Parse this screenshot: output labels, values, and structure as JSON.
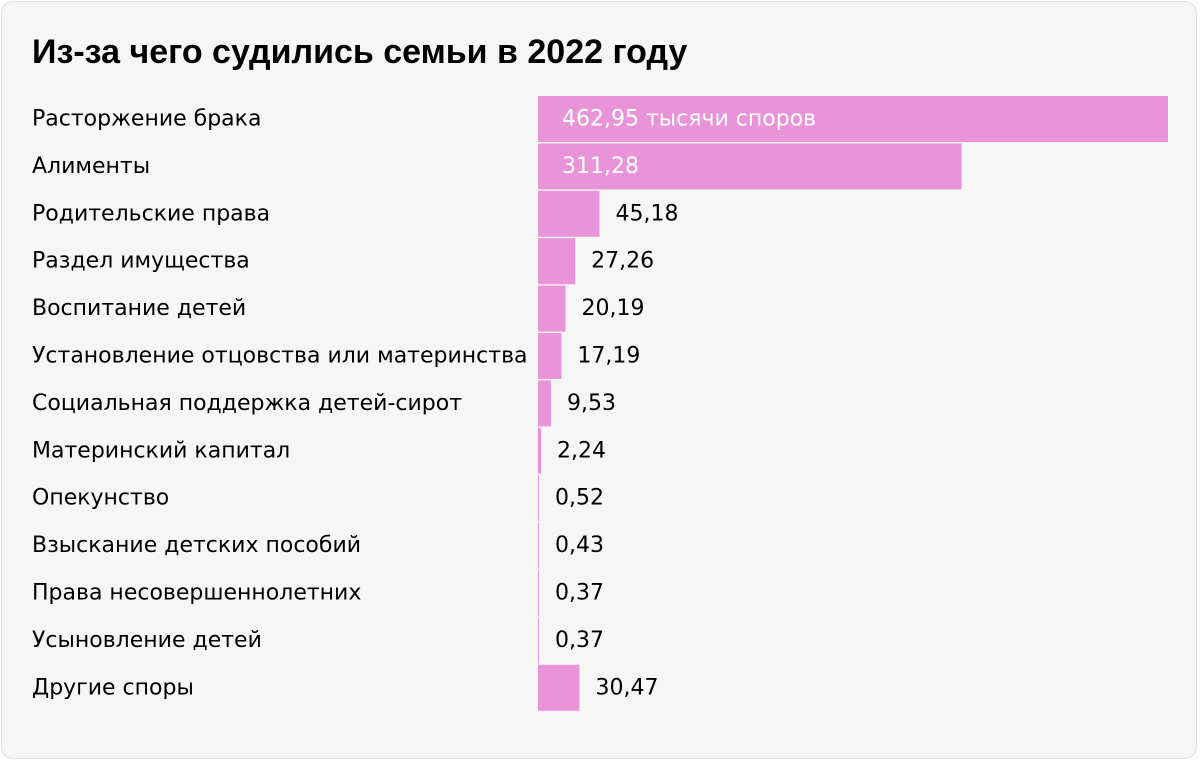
{
  "title": "Из-за чего судились семьи в 2022 году",
  "colors": {
    "bar": "#e994d9",
    "label_inside": "#ffffff",
    "label_outside": "#000000",
    "category_text": "#000000",
    "background": "#f6f6f6"
  },
  "chart_data": {
    "type": "bar",
    "orientation": "horizontal",
    "title": "Из-за чего судились семьи в 2022 году",
    "categories": [
      "Расторжение брака",
      "Алименты",
      "Родительские права",
      "Раздел имущества",
      "Воспитание детей",
      "Установление отцовства или материнства",
      "Социальная поддержка детей-сирот",
      "Материнский капитал",
      "Опекунство",
      "Взыскание детских пособий",
      "Права несовершеннолетних",
      "Усыновление детей",
      "Другие споры"
    ],
    "values": [
      462.95,
      311.28,
      45.18,
      27.26,
      20.19,
      17.19,
      9.53,
      2.24,
      0.52,
      0.43,
      0.37,
      0.37,
      30.47
    ],
    "value_labels": [
      "462,95 тысячи споров",
      "311,28",
      "45,18",
      "27,26",
      "20,19",
      "17,19",
      "9,53",
      "2,24",
      "0,52",
      "0,43",
      "0,37",
      "0,37",
      "30,47"
    ],
    "xlim": [
      0,
      462.95
    ],
    "grid": false,
    "legend": false
  }
}
